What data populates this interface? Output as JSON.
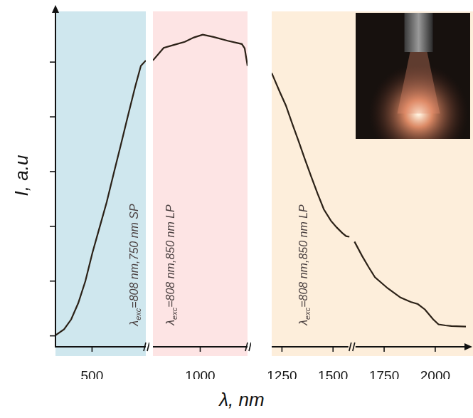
{
  "chart_data": [
    {
      "type": "line",
      "color": "#2b2117",
      "y_label": "I, a.u",
      "annotation": "λexc=808 nm,750 nm SP",
      "xlim": [
        330,
        750
      ],
      "xticks": [
        500
      ],
      "ylim": [
        -0.2,
        5.9
      ],
      "yticks": [
        0,
        1,
        2,
        3,
        4,
        5
      ],
      "grid": false,
      "tick_labels": "x",
      "x": [
        330,
        370,
        403,
        436,
        469,
        502,
        535,
        568,
        601,
        634,
        667,
        700,
        727,
        750
      ],
      "values": [
        0.01,
        0.12,
        0.3,
        0.6,
        1.0,
        1.52,
        1.98,
        2.44,
        2.97,
        3.49,
        4.02,
        4.54,
        4.93,
        5.03
      ]
    },
    {
      "type": "line",
      "color": "#2b2117",
      "x_label": "λ, nm",
      "annotation": "λexc=808 nm,850 nm LP",
      "xlim": [
        850,
        1150
      ],
      "xticks": [
        1000
      ],
      "ylim": [
        -0.2,
        5.9
      ],
      "grid": false,
      "tick_labels": "x",
      "x": [
        850,
        884,
        920,
        951,
        980,
        1008,
        1042,
        1087,
        1132,
        1141,
        1150
      ],
      "values": [
        5.03,
        5.26,
        5.32,
        5.37,
        5.45,
        5.5,
        5.46,
        5.39,
        5.33,
        5.25,
        4.93
      ]
    },
    {
      "type": "line",
      "color": "#2b2117",
      "annotation": "λexc=808 nm,850 nm LP",
      "xlim": [
        1200,
        2150
      ],
      "xticks": [
        1250,
        1500,
        1750,
        2000
      ],
      "ylim": [
        -0.2,
        5.9
      ],
      "grid": false,
      "tick_labels": "x",
      "x": [
        1200,
        1240,
        1269,
        1300,
        1331,
        1362,
        1393,
        1424,
        1455,
        1490,
        1518,
        1545,
        1564,
        1580,
        1600,
        1605,
        1642,
        1675,
        1705,
        1767,
        1830,
        1880,
        1915,
        1950,
        1990,
        2016,
        2050,
        2079,
        2150
      ],
      "values": [
        4.8,
        4.45,
        4.21,
        3.88,
        3.56,
        3.23,
        2.91,
        2.6,
        2.31,
        2.1,
        1.98,
        1.88,
        1.82,
        1.81,
        null,
        1.72,
        1.46,
        1.25,
        1.07,
        0.87,
        0.7,
        0.62,
        0.58,
        0.48,
        0.3,
        0.21,
        0.19,
        0.18,
        0.17
      ]
    }
  ]
}
